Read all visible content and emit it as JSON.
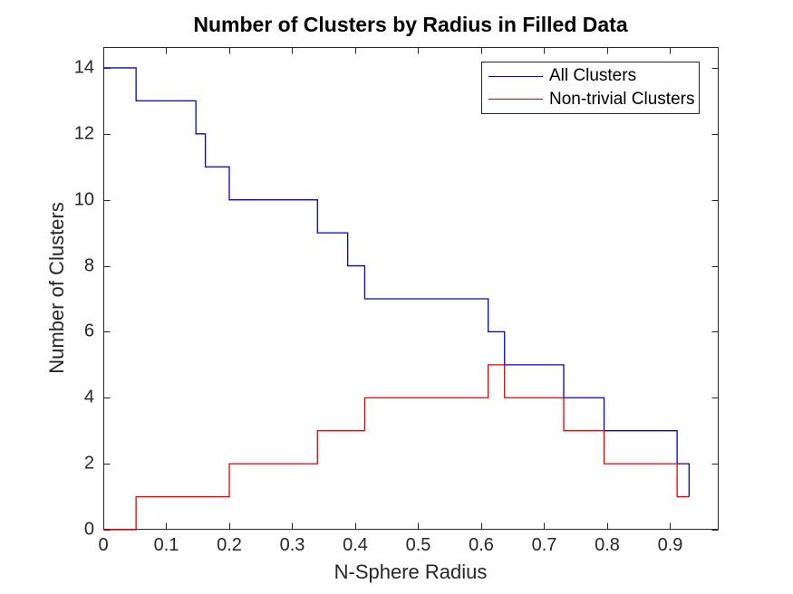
{
  "chart_data": {
    "type": "line",
    "step_mode": "post",
    "title": "Number of Clusters by Radius in Filled Data",
    "xlabel": "N-Sphere Radius",
    "ylabel": "Number of Clusters",
    "xlim": [
      0,
      0.977
    ],
    "ylim": [
      0,
      14.63
    ],
    "grid": false,
    "legend_position": "top-right-inside",
    "x_ticks": {
      "values": [
        0,
        0.1,
        0.2,
        0.3,
        0.4,
        0.5,
        0.6,
        0.7,
        0.8,
        0.9
      ],
      "labels": [
        "0",
        "0.1",
        "0.2",
        "0.3",
        "0.4",
        "0.5",
        "0.6",
        "0.7",
        "0.8",
        "0.9"
      ]
    },
    "y_ticks": {
      "values": [
        0,
        2,
        4,
        6,
        8,
        10,
        12,
        14
      ],
      "labels": [
        "0",
        "2",
        "4",
        "6",
        "8",
        "10",
        "12",
        "14"
      ]
    },
    "series": [
      {
        "name": "All Clusters",
        "color": "#0000ee",
        "x": [
          0,
          0.052,
          0.147,
          0.162,
          0.2,
          0.34,
          0.388,
          0.415,
          0.611,
          0.637,
          0.731,
          0.795,
          0.911,
          0.93
        ],
        "y": [
          14,
          13,
          12,
          11,
          10,
          9,
          8,
          7,
          6,
          5,
          4,
          3,
          2,
          1
        ]
      },
      {
        "name": "Non-trivial Clusters",
        "color": "#ee0000",
        "x": [
          0,
          0.052,
          0.2,
          0.34,
          0.415,
          0.611,
          0.637,
          0.731,
          0.795,
          0.911,
          0.93
        ],
        "y": [
          0,
          1,
          2,
          3,
          4,
          5,
          4,
          3,
          2,
          1,
          1
        ]
      }
    ],
    "colors": {
      "background": "#ffffff",
      "axis": "#262626",
      "tick_text": "#262626",
      "title_text": "#000000",
      "legend_border": "#262626",
      "legend_text": "#000000"
    }
  }
}
